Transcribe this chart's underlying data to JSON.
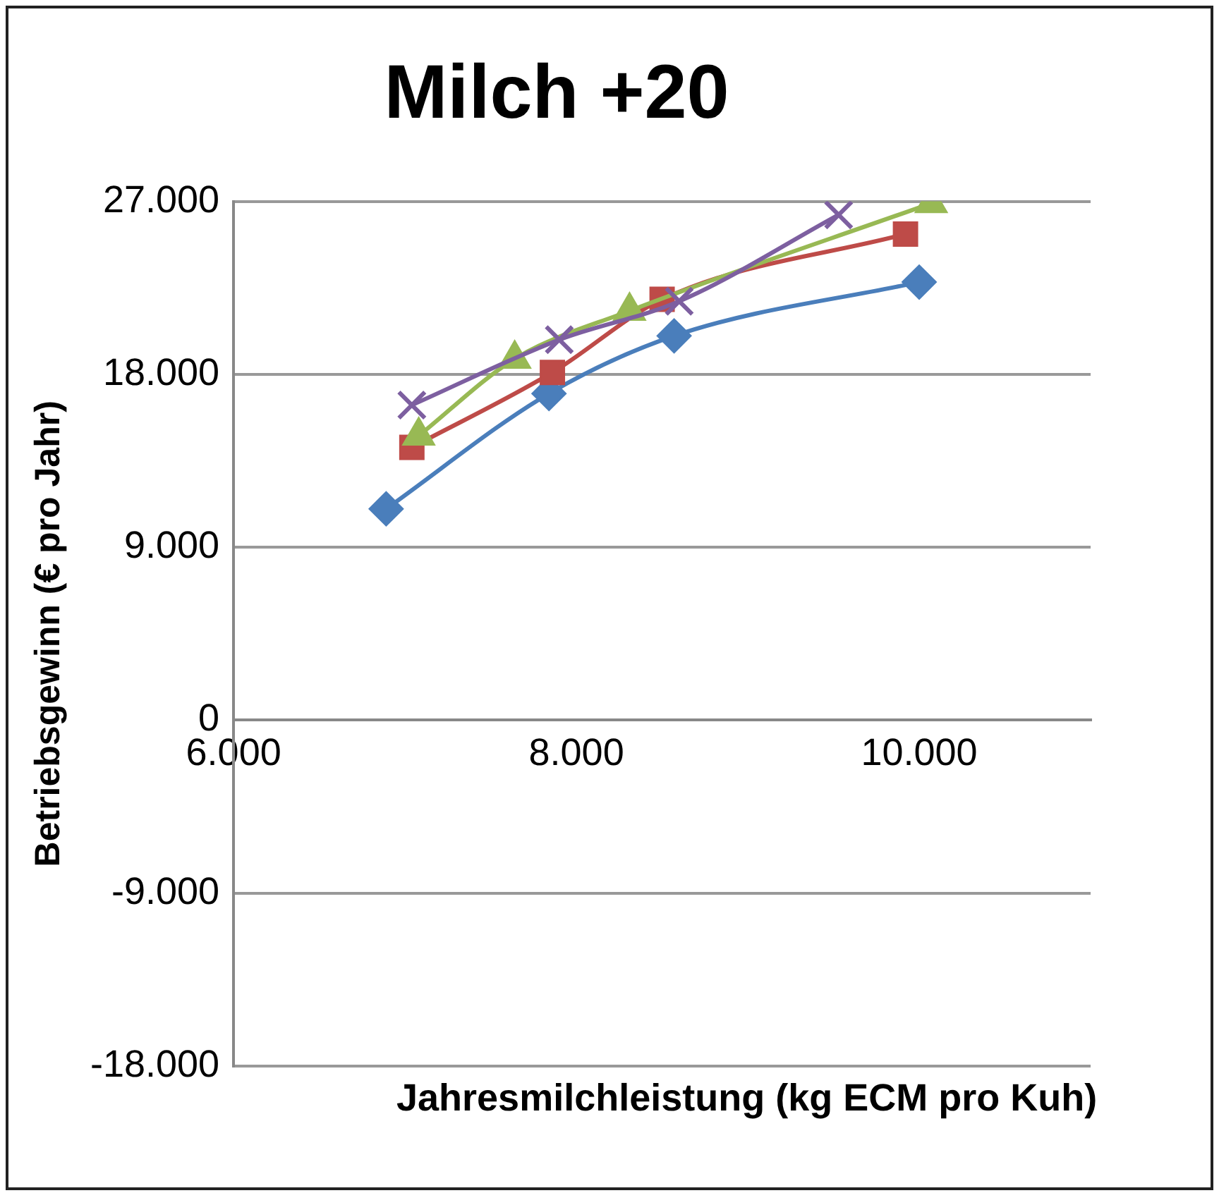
{
  "chart_data": {
    "type": "line",
    "title": "Milch +20",
    "xlabel": "Jahresmilchleistung (kg ECM pro Kuh)",
    "ylabel": "Betriebsgewinn (€ pro Jahr)",
    "xlim": [
      6000,
      11000
    ],
    "xticks": [
      {
        "value": 6000,
        "label": "6.000"
      },
      {
        "value": 8000,
        "label": "8.000"
      },
      {
        "value": 10000,
        "label": "10.000"
      }
    ],
    "ylim": [
      -18000,
      27000
    ],
    "yticks": [
      {
        "value": -18000,
        "label": "-18.000"
      },
      {
        "value": -9000,
        "label": "-9.000"
      },
      {
        "value": 0,
        "label": "0"
      },
      {
        "value": 9000,
        "label": "9.000"
      },
      {
        "value": 18000,
        "label": "18.000"
      },
      {
        "value": 27000,
        "label": "27.000"
      }
    ],
    "grid": "y",
    "legend": false,
    "series": [
      {
        "color": "#4a7ebb",
        "marker": "diamond",
        "x": [
          6890,
          7840,
          8570,
          10000
        ],
        "values": [
          11000,
          17000,
          20000,
          22800
        ]
      },
      {
        "color": "#be4b48",
        "marker": "square",
        "x": [
          7040,
          7860,
          8500,
          9920
        ],
        "values": [
          14200,
          18100,
          21900,
          25300
        ]
      },
      {
        "color": "#98b954",
        "marker": "triangle",
        "x": [
          7080,
          7640,
          8310,
          10070
        ],
        "values": [
          14800,
          18800,
          21300,
          26900
        ]
      },
      {
        "color": "#7d5fa0",
        "marker": "cross",
        "x": [
          7040,
          7900,
          8600,
          9530
        ],
        "values": [
          16400,
          19800,
          21800,
          26300
        ]
      }
    ]
  }
}
